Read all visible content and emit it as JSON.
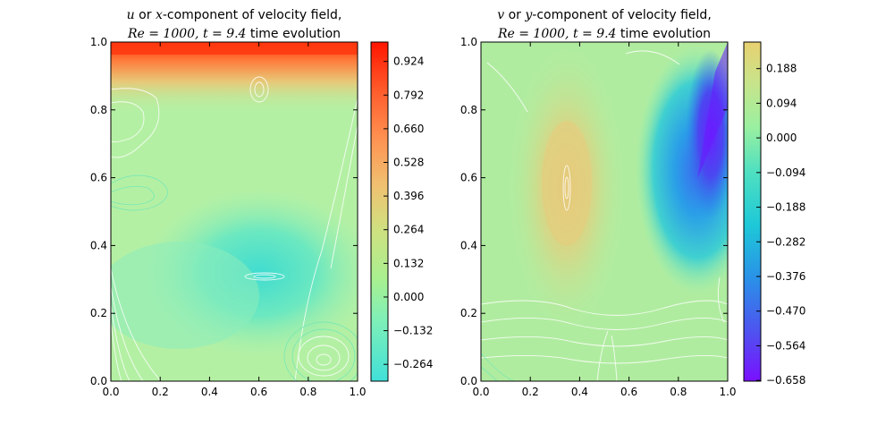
{
  "chart_data": [
    {
      "type": "contour",
      "title_parts": [
        {
          "text": "u",
          "math": true
        },
        {
          "text": " or ",
          "math": false
        },
        {
          "text": "x",
          "math": true
        },
        {
          "text": "-component of velocity field,",
          "math": false
        }
      ],
      "subtitle_parts": [
        {
          "text": "Re = 1000, t = 9.4",
          "math": true
        },
        {
          "text": " time evolution",
          "math": false
        }
      ],
      "xlim": [
        0.0,
        1.0
      ],
      "ylim": [
        0.0,
        1.0
      ],
      "x_ticks": [
        "0.0",
        "0.2",
        "0.4",
        "0.6",
        "0.8",
        "1.0"
      ],
      "y_ticks": [
        "0.0",
        "0.2",
        "0.4",
        "0.6",
        "0.8",
        "1.0"
      ],
      "colormap": "rainbow",
      "colorbar": {
        "range": [
          -0.33,
          1.0
        ],
        "ticks": [
          "-0.264",
          "-0.132",
          "0.000",
          "0.132",
          "0.264",
          "0.396",
          "0.528",
          "0.660",
          "0.792",
          "0.924"
        ],
        "tick_values": [
          -0.264,
          -0.132,
          0.0,
          0.132,
          0.264,
          0.396,
          0.528,
          0.66,
          0.792,
          0.924
        ]
      }
    },
    {
      "type": "contour",
      "title_parts": [
        {
          "text": "v",
          "math": true
        },
        {
          "text": " or ",
          "math": false
        },
        {
          "text": "y",
          "math": true
        },
        {
          "text": "-component of velocity field,",
          "math": false
        }
      ],
      "subtitle_parts": [
        {
          "text": "Re = 1000, t = 9.4",
          "math": true
        },
        {
          "text": " time evolution",
          "math": false
        }
      ],
      "xlim": [
        0.0,
        1.0
      ],
      "ylim": [
        0.0,
        1.0
      ],
      "x_ticks": [
        "0.0",
        "0.2",
        "0.4",
        "0.6",
        "0.8",
        "1.0"
      ],
      "y_ticks": [
        "0.0",
        "0.2",
        "0.4",
        "0.6",
        "0.8",
        "1.0"
      ],
      "colormap": "rainbow",
      "colorbar": {
        "range": [
          -0.66,
          0.26
        ],
        "ticks": [
          "-0.658",
          "-0.564",
          "-0.470",
          "-0.376",
          "-0.282",
          "-0.188",
          "-0.094",
          "0.000",
          "0.094",
          "0.188"
        ],
        "tick_values": [
          -0.658,
          -0.564,
          -0.47,
          -0.376,
          -0.282,
          -0.188,
          -0.094,
          0.0,
          0.094,
          0.188
        ]
      }
    }
  ]
}
